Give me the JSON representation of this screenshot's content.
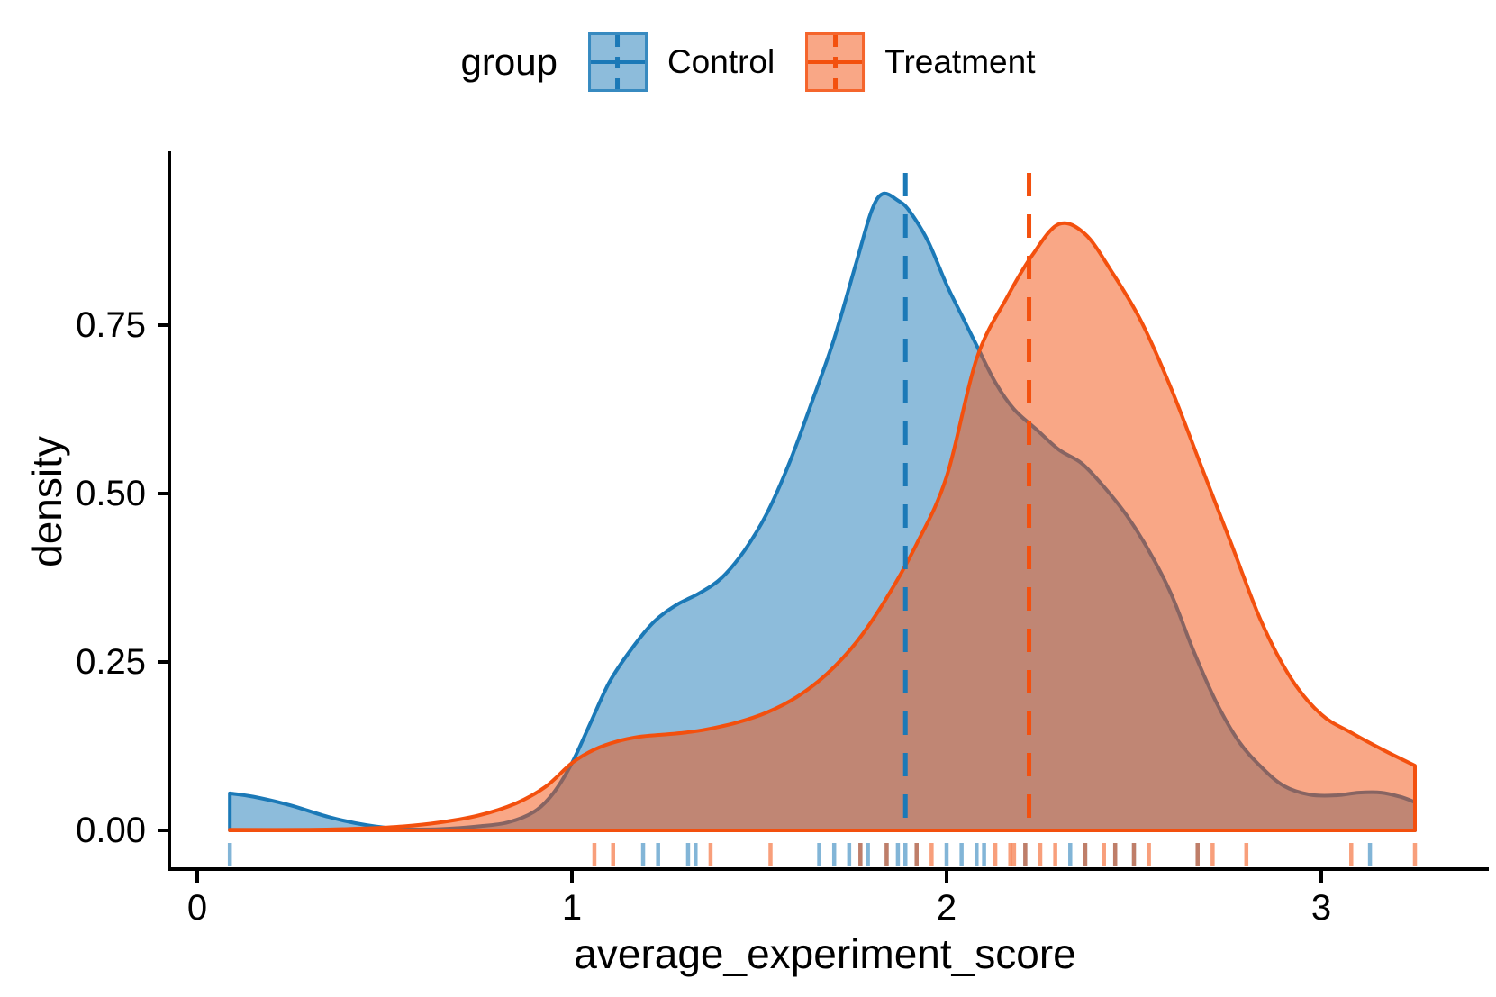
{
  "legend": {
    "title": "group",
    "entries": [
      {
        "label": "Control"
      },
      {
        "label": "Treatment"
      }
    ]
  },
  "axes": {
    "x": {
      "title": "average_experiment_score",
      "tick_labels": [
        "0",
        "1",
        "2",
        "3"
      ],
      "tick_values": [
        0,
        1,
        2,
        3
      ],
      "range": [
        -0.075,
        3.44
      ]
    },
    "y": {
      "title": "density",
      "tick_labels": [
        "0.00",
        "0.25",
        "0.50",
        "0.75"
      ],
      "tick_values": [
        0,
        0.25,
        0.5,
        0.75
      ],
      "range": [
        0,
        1.005
      ]
    }
  },
  "chart_data": {
    "type": "area",
    "subtype": "overlapping-kernel-density",
    "title": "",
    "xlabel": "average_experiment_score",
    "ylabel": "density",
    "xlim": [
      -0.075,
      3.44
    ],
    "ylim": [
      0,
      1.005
    ],
    "grid": false,
    "legend_position": "top-center",
    "data_range": [
      0.087,
      3.25
    ],
    "series": [
      {
        "name": "Control",
        "color": "#1b79b7",
        "fill_opacity": 0.5,
        "line_width": 4,
        "mean_vline": 1.89,
        "x": [
          0.087,
          0.15,
          0.25,
          0.35,
          0.45,
          0.55,
          0.65,
          0.75,
          0.83,
          0.9,
          0.95,
          1.0,
          1.05,
          1.1,
          1.16,
          1.22,
          1.28,
          1.34,
          1.4,
          1.46,
          1.52,
          1.58,
          1.64,
          1.7,
          1.76,
          1.8,
          1.83,
          1.87,
          1.9,
          1.95,
          2.0,
          2.04,
          2.08,
          2.13,
          2.18,
          2.24,
          2.3,
          2.36,
          2.42,
          2.48,
          2.54,
          2.6,
          2.66,
          2.72,
          2.78,
          2.84,
          2.9,
          2.97,
          3.04,
          3.1,
          3.16,
          3.21,
          3.25
        ],
        "density": [
          0.055,
          0.05,
          0.037,
          0.02,
          0.008,
          0.002,
          0.002,
          0.006,
          0.012,
          0.028,
          0.055,
          0.1,
          0.16,
          0.22,
          0.27,
          0.31,
          0.335,
          0.352,
          0.375,
          0.415,
          0.47,
          0.545,
          0.635,
          0.73,
          0.845,
          0.92,
          0.945,
          0.935,
          0.92,
          0.875,
          0.81,
          0.765,
          0.72,
          0.665,
          0.625,
          0.595,
          0.565,
          0.545,
          0.51,
          0.468,
          0.415,
          0.35,
          0.265,
          0.19,
          0.132,
          0.094,
          0.066,
          0.053,
          0.052,
          0.056,
          0.056,
          0.05,
          0.042
        ],
        "rug": [
          0.087,
          1.19,
          1.23,
          1.31,
          1.33,
          1.66,
          1.7,
          1.74,
          1.77,
          1.79,
          1.84,
          1.87,
          1.89,
          1.92,
          2.0,
          2.04,
          2.08,
          2.1,
          2.21,
          2.33,
          2.37,
          2.45,
          2.5,
          2.67,
          3.13
        ]
      },
      {
        "name": "Treatment",
        "color": "#f3500e",
        "fill_opacity": 0.5,
        "line_width": 4,
        "mean_vline": 2.22,
        "x": [
          0.087,
          0.3,
          0.45,
          0.55,
          0.65,
          0.75,
          0.85,
          0.93,
          1.0,
          1.06,
          1.12,
          1.18,
          1.24,
          1.3,
          1.36,
          1.44,
          1.52,
          1.6,
          1.68,
          1.76,
          1.84,
          1.92,
          2.0,
          2.08,
          2.16,
          2.23,
          2.3,
          2.37,
          2.44,
          2.52,
          2.6,
          2.68,
          2.76,
          2.84,
          2.92,
          3.0,
          3.08,
          3.17,
          3.25
        ],
        "density": [
          0.001,
          0.001,
          0.003,
          0.006,
          0.012,
          0.022,
          0.04,
          0.065,
          0.1,
          0.12,
          0.132,
          0.139,
          0.142,
          0.145,
          0.15,
          0.16,
          0.175,
          0.198,
          0.232,
          0.28,
          0.345,
          0.425,
          0.525,
          0.7,
          0.79,
          0.855,
          0.9,
          0.885,
          0.83,
          0.755,
          0.655,
          0.54,
          0.425,
          0.31,
          0.225,
          0.172,
          0.145,
          0.118,
          0.096
        ],
        "rug": [
          1.06,
          1.11,
          1.37,
          1.53,
          1.77,
          1.84,
          1.92,
          1.96,
          2.13,
          2.17,
          2.18,
          2.21,
          2.25,
          2.29,
          2.37,
          2.42,
          2.45,
          2.5,
          2.54,
          2.67,
          2.71,
          2.8,
          3.08,
          3.25
        ]
      }
    ],
    "vline_style": "dashed",
    "rug_opacity": 0.55
  }
}
